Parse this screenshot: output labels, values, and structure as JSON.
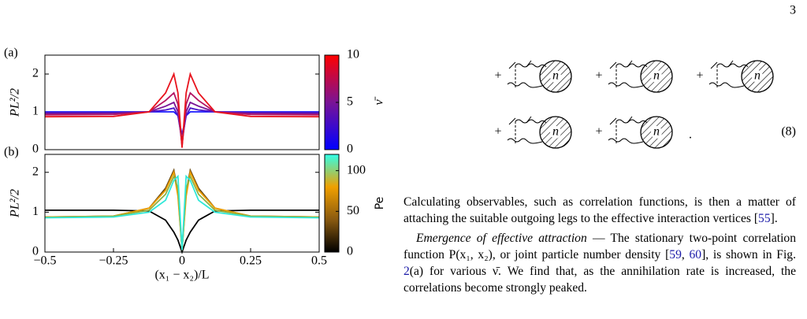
{
  "page_number": "3",
  "chart_data": [
    {
      "type": "line",
      "panel_label": "(a)",
      "ylabel": "PL²/2",
      "x": [
        -0.5,
        -0.25,
        -0.12,
        -0.06,
        -0.03,
        -0.015,
        0,
        0.015,
        0.03,
        0.06,
        0.12,
        0.25,
        0.5
      ],
      "series": [
        {
          "color": "#1a1aff",
          "values": [
            1.0,
            1.0,
            1.0,
            1.0,
            1.0,
            0.9,
            0.4,
            0.9,
            1.0,
            1.0,
            1.0,
            1.0,
            1.0
          ]
        },
        {
          "color": "#4a14c8",
          "values": [
            0.98,
            0.98,
            1.0,
            1.05,
            1.1,
            0.9,
            0.25,
            0.9,
            1.1,
            1.05,
            1.0,
            0.98,
            0.98
          ]
        },
        {
          "color": "#7a1496",
          "values": [
            0.95,
            0.96,
            1.0,
            1.15,
            1.25,
            1.0,
            0.15,
            1.0,
            1.25,
            1.15,
            1.0,
            0.96,
            0.95
          ]
        },
        {
          "color": "#b41464",
          "values": [
            0.92,
            0.93,
            1.0,
            1.3,
            1.5,
            1.2,
            0.1,
            1.2,
            1.5,
            1.3,
            1.0,
            0.93,
            0.92
          ]
        },
        {
          "color": "#e8141e",
          "values": [
            0.87,
            0.88,
            1.0,
            1.5,
            2.0,
            1.5,
            0.05,
            1.5,
            2.0,
            1.5,
            1.0,
            0.88,
            0.87
          ]
        }
      ],
      "xlim": [
        -0.5,
        0.5
      ],
      "ylim": [
        0,
        2.5
      ],
      "yticks": [
        0,
        1,
        2
      ],
      "colorbar": {
        "label": "ν̄",
        "lim": [
          0,
          10
        ],
        "ticks": [
          0,
          5,
          10
        ],
        "colors": [
          "#0000ff",
          "#7a1496",
          "#ff0000"
        ]
      }
    },
    {
      "type": "line",
      "panel_label": "(b)",
      "ylabel": "PL²/2",
      "xlabel": "(x₁ − x₂)/L",
      "x": [
        -0.5,
        -0.25,
        -0.12,
        -0.06,
        -0.03,
        -0.015,
        0,
        0.015,
        0.03,
        0.06,
        0.12,
        0.25,
        0.5
      ],
      "series": [
        {
          "color": "#000000",
          "values": [
            1.05,
            1.05,
            1.03,
            0.8,
            0.5,
            0.3,
            0,
            0.3,
            0.5,
            0.8,
            1.03,
            1.05,
            1.05
          ]
        },
        {
          "color": "#6b4a10",
          "values": [
            0.88,
            0.9,
            1.1,
            1.6,
            2.05,
            1.5,
            0.05,
            1.5,
            2.05,
            1.6,
            1.1,
            0.9,
            0.88
          ]
        },
        {
          "color": "#f0a000",
          "values": [
            0.88,
            0.9,
            1.1,
            1.55,
            2.0,
            1.4,
            0.05,
            1.4,
            2.0,
            1.55,
            1.1,
            0.9,
            0.88
          ]
        },
        {
          "color": "#90b040",
          "values": [
            0.87,
            0.9,
            1.05,
            1.45,
            1.9,
            1.6,
            0.05,
            1.6,
            1.9,
            1.45,
            1.05,
            0.9,
            0.87
          ]
        },
        {
          "color": "#30e8d8",
          "values": [
            0.86,
            0.88,
            1.0,
            1.3,
            1.8,
            1.9,
            0.05,
            1.9,
            1.8,
            1.3,
            1.0,
            0.88,
            0.86
          ]
        }
      ],
      "xlim": [
        -0.5,
        0.5
      ],
      "ylim": [
        0,
        2.45
      ],
      "yticks": [
        0,
        1,
        2
      ],
      "xticks": [
        {
          "value": -0.5,
          "label": "−0.5"
        },
        {
          "value": -0.25,
          "label": "−0.25"
        },
        0,
        0.25,
        0.5
      ],
      "colorbar": {
        "label": "Pe",
        "lim": [
          0,
          120
        ],
        "ticks": [
          0,
          50,
          100
        ],
        "colors": [
          "#000000",
          "#8a5a10",
          "#f0a000",
          "#30ffe8"
        ]
      }
    }
  ],
  "equation": {
    "number": "(8)",
    "rows": [
      {
        "terms": [
          {
            "sign": "+",
            "label": "n"
          },
          {
            "sign": "+",
            "label": "n"
          },
          {
            "sign": "+",
            "label": "n"
          }
        ]
      },
      {
        "terms": [
          {
            "sign": "+",
            "label": "n"
          },
          {
            "sign": "+",
            "label": "n"
          }
        ],
        "end": "."
      }
    ]
  },
  "paragraphs": [
    {
      "segments": [
        {
          "text": "Calculating observables, such as correlation functions, is then a matter of attaching the suitable outgoing legs to the effective interaction vertices ["
        },
        {
          "text": "55",
          "link": true
        },
        {
          "text": "]."
        }
      ]
    },
    {
      "heading": "Emergence of effective attraction",
      "segments": [
        {
          "text": " — The stationary two-point correlation function P(x₁, x₂), or joint particle number density ["
        },
        {
          "text": "59",
          "link": true
        },
        {
          "text": ", "
        },
        {
          "text": "60",
          "link": true
        },
        {
          "text": "], is shown in Fig. "
        },
        {
          "text": "2",
          "link": true
        },
        {
          "text": "(a) for various ν̄. We find that, as the annihilation rate is increased, the correlations become strongly peaked."
        }
      ]
    }
  ]
}
